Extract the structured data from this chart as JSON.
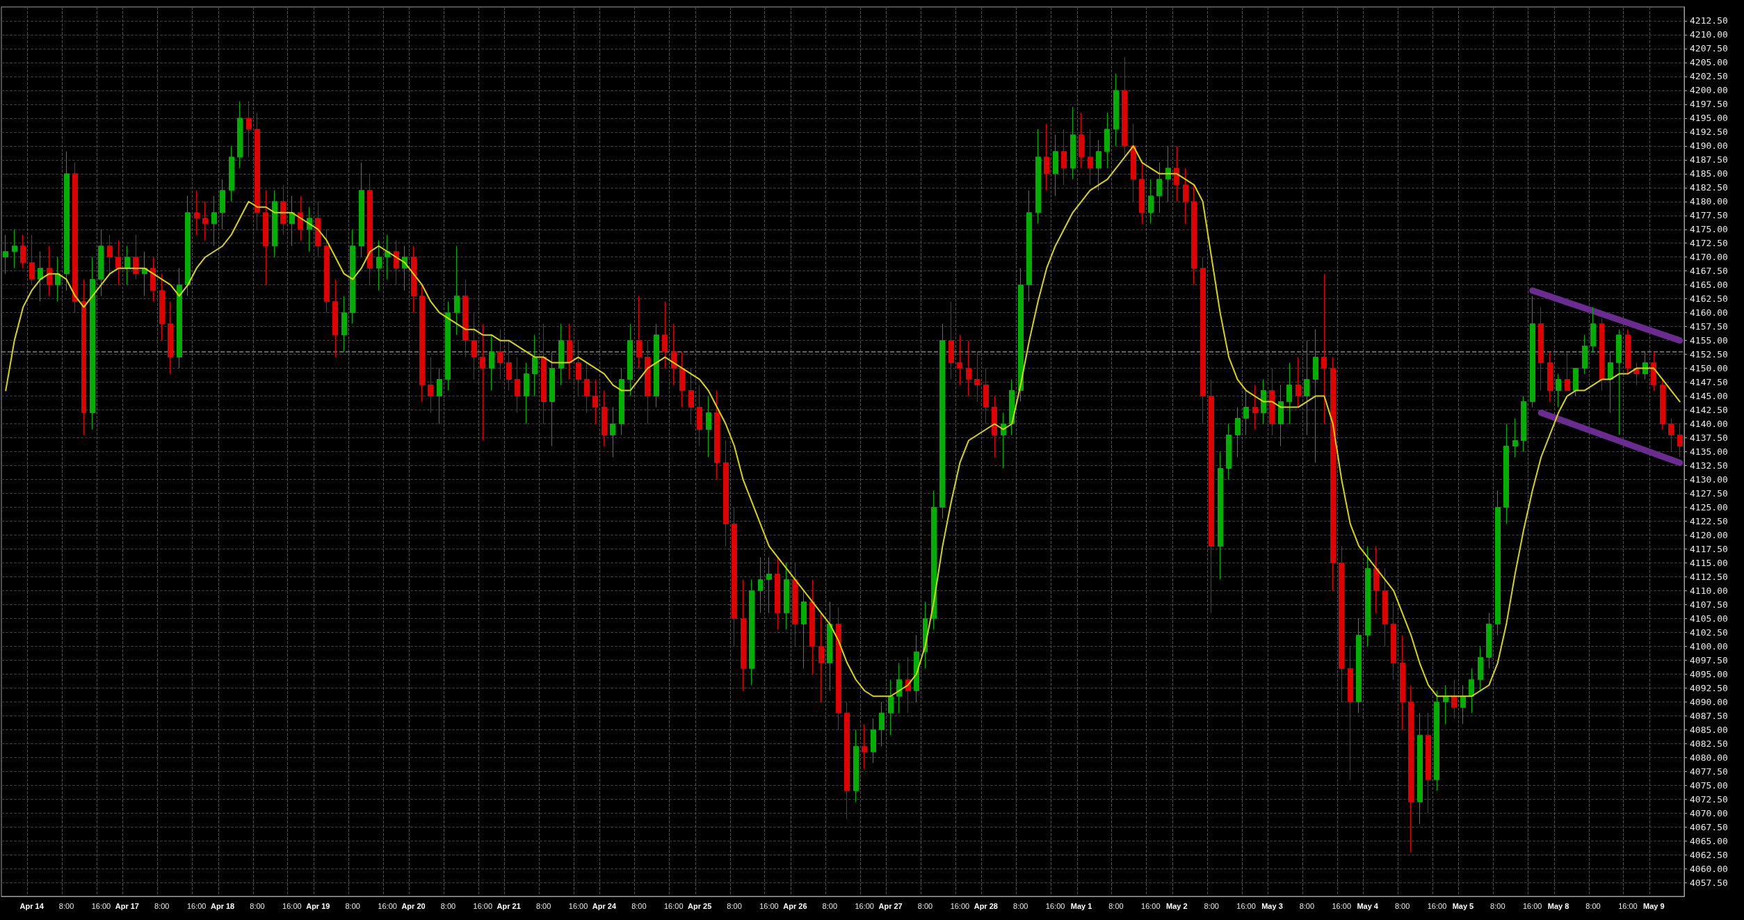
{
  "chart_data": {
    "type": "candlestick",
    "categories": [
      null,
      null,
      null,
      "Apr 14",
      null,
      null,
      null,
      "8:00",
      null,
      null,
      null,
      "16:00",
      null,
      null,
      "Apr 17",
      null,
      null,
      null,
      "8:00",
      null,
      null,
      null,
      "16:00",
      null,
      null,
      "Apr 18",
      null,
      null,
      null,
      "8:00",
      null,
      null,
      null,
      "16:00",
      null,
      null,
      "Apr 19",
      null,
      null,
      null,
      "8:00",
      null,
      null,
      null,
      "16:00",
      null,
      null,
      "Apr 20",
      null,
      null,
      null,
      "8:00",
      null,
      null,
      null,
      "16:00",
      null,
      null,
      "Apr 21",
      null,
      null,
      null,
      "8:00",
      null,
      null,
      null,
      "16:00",
      null,
      null,
      "Apr 24",
      null,
      null,
      null,
      "8:00",
      null,
      null,
      null,
      "16:00",
      null,
      null,
      "Apr 25",
      null,
      null,
      null,
      "8:00",
      null,
      null,
      null,
      "16:00",
      null,
      null,
      "Apr 26",
      null,
      null,
      null,
      "8:00",
      null,
      null,
      null,
      "16:00",
      null,
      null,
      "Apr 27",
      null,
      null,
      null,
      "8:00",
      null,
      null,
      null,
      "16:00",
      null,
      null,
      "Apr 28",
      null,
      null,
      null,
      "8:00",
      null,
      null,
      null,
      "16:00",
      null,
      null,
      "May 1",
      null,
      null,
      null,
      "8:00",
      null,
      null,
      null,
      "16:00",
      null,
      null,
      "May 2",
      null,
      null,
      null,
      "8:00",
      null,
      null,
      null,
      "16:00",
      null,
      null,
      "May 3",
      null,
      null,
      null,
      "8:00",
      null,
      null,
      null,
      "16:00",
      null,
      null,
      "May 4",
      null,
      null,
      null,
      "8:00",
      null,
      null,
      null,
      "16:00",
      null,
      null,
      "May 5",
      null,
      null,
      null,
      "8:00",
      null,
      null,
      null,
      "16:00",
      null,
      null,
      "May 8",
      null,
      null,
      null,
      "8:00",
      null,
      null,
      null,
      "16:00",
      null,
      null,
      "May 9",
      null,
      null,
      null
    ],
    "ohlc": [
      [
        4170,
        4174,
        4167,
        4171
      ],
      [
        4171,
        4175,
        4168,
        4172
      ],
      [
        4172,
        4174,
        4168,
        4169
      ],
      [
        4169,
        4174,
        4165,
        4166
      ],
      [
        4166,
        4171,
        4162,
        4168
      ],
      [
        4168,
        4172,
        4163,
        4165
      ],
      [
        4165,
        4170,
        4162,
        4167
      ],
      [
        4167,
        4189,
        4164,
        4185
      ],
      [
        4185,
        4187,
        4160,
        4162
      ],
      [
        4162,
        4166,
        4138,
        4142
      ],
      [
        4142,
        4170,
        4139,
        4166
      ],
      [
        4166,
        4175,
        4163,
        4172
      ],
      [
        4172,
        4174,
        4167,
        4170
      ],
      [
        4170,
        4173,
        4165,
        4168
      ],
      [
        4168,
        4172,
        4165,
        4170
      ],
      [
        4170,
        4174,
        4166,
        4167
      ],
      [
        4167,
        4171,
        4163,
        4168
      ],
      [
        4168,
        4170,
        4162,
        4164
      ],
      [
        4164,
        4167,
        4155,
        4158
      ],
      [
        4158,
        4162,
        4149,
        4152
      ],
      [
        4152,
        4168,
        4150,
        4165
      ],
      [
        4165,
        4181,
        4163,
        4178
      ],
      [
        4178,
        4182,
        4174,
        4177
      ],
      [
        4177,
        4180,
        4173,
        4176
      ],
      [
        4176,
        4181,
        4172,
        4178
      ],
      [
        4178,
        4184,
        4175,
        4182
      ],
      [
        4182,
        4190,
        4180,
        4188
      ],
      [
        4188,
        4198,
        4186,
        4195
      ],
      [
        4195,
        4198,
        4188,
        4193
      ],
      [
        4193,
        4196,
        4175,
        4178
      ],
      [
        4178,
        4182,
        4165,
        4172
      ],
      [
        4172,
        4182,
        4170,
        4180
      ],
      [
        4180,
        4183,
        4174,
        4176
      ],
      [
        4176,
        4181,
        4172,
        4178
      ],
      [
        4178,
        4181,
        4173,
        4175
      ],
      [
        4175,
        4179,
        4171,
        4177
      ],
      [
        4177,
        4180,
        4170,
        4172
      ],
      [
        4172,
        4175,
        4160,
        4162
      ],
      [
        4162,
        4166,
        4152,
        4156
      ],
      [
        4156,
        4163,
        4153,
        4160
      ],
      [
        4160,
        4175,
        4158,
        4172
      ],
      [
        4172,
        4187,
        4170,
        4182
      ],
      [
        4182,
        4185,
        4165,
        4168
      ],
      [
        4168,
        4173,
        4164,
        4170
      ],
      [
        4170,
        4174,
        4166,
        4171
      ],
      [
        4171,
        4173,
        4165,
        4168
      ],
      [
        4168,
        4172,
        4164,
        4170
      ],
      [
        4170,
        4172,
        4160,
        4163
      ],
      [
        4163,
        4165,
        4144,
        4147
      ],
      [
        4147,
        4152,
        4142,
        4145
      ],
      [
        4145,
        4150,
        4140,
        4148
      ],
      [
        4148,
        4162,
        4146,
        4160
      ],
      [
        4160,
        4172,
        4156,
        4163
      ],
      [
        4163,
        4166,
        4152,
        4155
      ],
      [
        4155,
        4160,
        4148,
        4152
      ],
      [
        4152,
        4158,
        4137,
        4150
      ],
      [
        4150,
        4156,
        4146,
        4153
      ],
      [
        4153,
        4157,
        4148,
        4151
      ],
      [
        4151,
        4155,
        4146,
        4148
      ],
      [
        4148,
        4152,
        4142,
        4145
      ],
      [
        4145,
        4151,
        4140,
        4149
      ],
      [
        4149,
        4156,
        4145,
        4152
      ],
      [
        4152,
        4158,
        4140,
        4144
      ],
      [
        4144,
        4153,
        4136,
        4150
      ],
      [
        4150,
        4158,
        4147,
        4155
      ],
      [
        4155,
        4158,
        4148,
        4151
      ],
      [
        4151,
        4155,
        4145,
        4148
      ],
      [
        4148,
        4151,
        4142,
        4145
      ],
      [
        4145,
        4148,
        4140,
        4143
      ],
      [
        4143,
        4146,
        4136,
        4138
      ],
      [
        4138,
        4143,
        4134,
        4140
      ],
      [
        4140,
        4150,
        4138,
        4148
      ],
      [
        4148,
        4158,
        4145,
        4155
      ],
      [
        4155,
        4163,
        4150,
        4152
      ],
      [
        4152,
        4155,
        4140,
        4145
      ],
      [
        4145,
        4158,
        4143,
        4156
      ],
      [
        4156,
        4162,
        4150,
        4153
      ],
      [
        4153,
        4158,
        4147,
        4150
      ],
      [
        4150,
        4153,
        4143,
        4146
      ],
      [
        4146,
        4150,
        4140,
        4143
      ],
      [
        4143,
        4147,
        4136,
        4139
      ],
      [
        4139,
        4145,
        4134,
        4142
      ],
      [
        4142,
        4146,
        4130,
        4133
      ],
      [
        4133,
        4137,
        4118,
        4122
      ],
      [
        4122,
        4125,
        4100,
        4105
      ],
      [
        4105,
        4112,
        4092,
        4096
      ],
      [
        4096,
        4112,
        4093,
        4110
      ],
      [
        4110,
        4116,
        4106,
        4112
      ],
      [
        4112,
        4116,
        4106,
        4113
      ],
      [
        4113,
        4116,
        4103,
        4106
      ],
      [
        4106,
        4115,
        4103,
        4112
      ],
      [
        4112,
        4115,
        4100,
        4104
      ],
      [
        4104,
        4110,
        4096,
        4108
      ],
      [
        4108,
        4112,
        4095,
        4100
      ],
      [
        4100,
        4106,
        4090,
        4097
      ],
      [
        4097,
        4108,
        4092,
        4104
      ],
      [
        4104,
        4107,
        4085,
        4088
      ],
      [
        4088,
        4090,
        4069,
        4074
      ],
      [
        4074,
        4085,
        4072,
        4082
      ],
      [
        4082,
        4086,
        4078,
        4081
      ],
      [
        4081,
        4087,
        4079,
        4085
      ],
      [
        4085,
        4090,
        4082,
        4088
      ],
      [
        4088,
        4094,
        4084,
        4091
      ],
      [
        4091,
        4097,
        4088,
        4094
      ],
      [
        4094,
        4098,
        4088,
        4092
      ],
      [
        4092,
        4102,
        4090,
        4099
      ],
      [
        4099,
        4108,
        4096,
        4105
      ],
      [
        4105,
        4128,
        4103,
        4125
      ],
      [
        4125,
        4158,
        4123,
        4155
      ],
      [
        4155,
        4162,
        4148,
        4151
      ],
      [
        4151,
        4156,
        4147,
        4150
      ],
      [
        4150,
        4155,
        4145,
        4148
      ],
      [
        4148,
        4153,
        4144,
        4147
      ],
      [
        4147,
        4150,
        4140,
        4143
      ],
      [
        4143,
        4145,
        4134,
        4138
      ],
      [
        4138,
        4142,
        4132,
        4140
      ],
      [
        4140,
        4148,
        4138,
        4146
      ],
      [
        4146,
        4168,
        4144,
        4165
      ],
      [
        4165,
        4182,
        4162,
        4178
      ],
      [
        4178,
        4193,
        4176,
        4188
      ],
      [
        4188,
        4194,
        4182,
        4185
      ],
      [
        4185,
        4192,
        4181,
        4189
      ],
      [
        4189,
        4193,
        4183,
        4186
      ],
      [
        4186,
        4197,
        4184,
        4192
      ],
      [
        4192,
        4196,
        4186,
        4188
      ],
      [
        4188,
        4193,
        4183,
        4186
      ],
      [
        4186,
        4191,
        4182,
        4189
      ],
      [
        4189,
        4196,
        4186,
        4193
      ],
      [
        4193,
        4203,
        4190,
        4200
      ],
      [
        4200,
        4206,
        4188,
        4190
      ],
      [
        4190,
        4194,
        4180,
        4184
      ],
      [
        4184,
        4187,
        4176,
        4178
      ],
      [
        4178,
        4184,
        4176,
        4181
      ],
      [
        4181,
        4187,
        4178,
        4184
      ],
      [
        4184,
        4190,
        4180,
        4186
      ],
      [
        4186,
        4190,
        4180,
        4183
      ],
      [
        4183,
        4186,
        4176,
        4180
      ],
      [
        4180,
        4183,
        4165,
        4168
      ],
      [
        4168,
        4170,
        4140,
        4145
      ],
      [
        4145,
        4148,
        4106,
        4118
      ],
      [
        4118,
        4135,
        4112,
        4132
      ],
      [
        4132,
        4140,
        4130,
        4138
      ],
      [
        4138,
        4143,
        4134,
        4141
      ],
      [
        4141,
        4146,
        4138,
        4143
      ],
      [
        4143,
        4147,
        4139,
        4142
      ],
      [
        4142,
        4148,
        4140,
        4146
      ],
      [
        4146,
        4150,
        4138,
        4140
      ],
      [
        4140,
        4147,
        4136,
        4144
      ],
      [
        4144,
        4151,
        4140,
        4147
      ],
      [
        4147,
        4152,
        4143,
        4145
      ],
      [
        4145,
        4155,
        4138,
        4148
      ],
      [
        4148,
        4157,
        4133,
        4152
      ],
      [
        4152,
        4167,
        4140,
        4150
      ],
      [
        4150,
        4152,
        4110,
        4115
      ],
      [
        4115,
        4118,
        4090,
        4096
      ],
      [
        4096,
        4100,
        4076,
        4090
      ],
      [
        4090,
        4105,
        4088,
        4102
      ],
      [
        4102,
        4118,
        4100,
        4114
      ],
      [
        4114,
        4118,
        4106,
        4110
      ],
      [
        4110,
        4114,
        4100,
        4104
      ],
      [
        4104,
        4108,
        4094,
        4097
      ],
      [
        4097,
        4102,
        4085,
        4090
      ],
      [
        4090,
        4093,
        4063,
        4072
      ],
      [
        4072,
        4088,
        4068,
        4084
      ],
      [
        4084,
        4088,
        4070,
        4076
      ],
      [
        4076,
        4092,
        4074,
        4090
      ],
      [
        4090,
        4093,
        4086,
        4091
      ],
      [
        4091,
        4094,
        4087,
        4089
      ],
      [
        4089,
        4093,
        4086,
        4091
      ],
      [
        4091,
        4096,
        4088,
        4094
      ],
      [
        4094,
        4100,
        4092,
        4098
      ],
      [
        4098,
        4106,
        4096,
        4104
      ],
      [
        4104,
        4128,
        4102,
        4125
      ],
      [
        4125,
        4140,
        4122,
        4136
      ],
      [
        4136,
        4141,
        4134,
        4137
      ],
      [
        4137,
        4145,
        4135,
        4144
      ],
      [
        4144,
        4163,
        4143,
        4158
      ],
      [
        4158,
        4161,
        4146,
        4151
      ],
      [
        4151,
        4153,
        4144,
        4146
      ],
      [
        4146,
        4149,
        4143,
        4148
      ],
      [
        4148,
        4153,
        4146,
        4146
      ],
      [
        4146,
        4150,
        4145,
        4150
      ],
      [
        4150,
        4156,
        4149,
        4154
      ],
      [
        4154,
        4161,
        4153,
        4158
      ],
      [
        4158,
        4159,
        4146,
        4148
      ],
      [
        4148,
        4153,
        4142,
        4151
      ],
      [
        4151,
        4157,
        4138,
        4156
      ],
      [
        4156,
        4157,
        4149,
        4150
      ],
      [
        4150,
        4151,
        4147,
        4149
      ],
      [
        4149,
        4153,
        4148,
        4151
      ],
      [
        4151,
        4153,
        4146,
        4147
      ],
      [
        4147,
        4148,
        4139,
        4140
      ],
      [
        4140,
        4141,
        4135,
        4138
      ],
      [
        4138,
        4140,
        4134,
        4136
      ]
    ],
    "series": [
      {
        "type": "line",
        "color": "#d8d800",
        "values": [
          4146,
          4155,
          4161,
          4164,
          4166,
          4167,
          4167,
          4166,
          4163,
          4161,
          4163,
          4165,
          4167,
          4168,
          4168,
          4168,
          4168,
          4167,
          4166,
          4165,
          4163,
          4165,
          4168,
          4170,
          4171,
          4172,
          4174,
          4177,
          4180,
          4179,
          4179,
          4178,
          4178,
          4178,
          4177,
          4176,
          4175,
          4173,
          4170,
          4167,
          4166,
          4168,
          4171,
          4172,
          4171,
          4170,
          4169,
          4167,
          4165,
          4162,
          4160,
          4159,
          4158,
          4157,
          4157,
          4156,
          4156,
          4155,
          4155,
          4154,
          4153,
          4152,
          4152,
          4151,
          4151,
          4151,
          4152,
          4151,
          4150,
          4149,
          4147,
          4146,
          4146,
          4148,
          4150,
          4151,
          4152,
          4151,
          4150,
          4149,
          4148,
          4146,
          4143,
          4140,
          4136,
          4130,
          4126,
          4122,
          4118,
          4116,
          4114,
          4112,
          4110,
          4108,
          4106,
          4104,
          4101,
          4097,
          4094,
          4092,
          4091,
          4091,
          4091,
          4092,
          4093,
          4095,
          4100,
          4108,
          4118,
          4126,
          4133,
          4137,
          4138,
          4139,
          4140,
          4139,
          4140,
          4147,
          4155,
          4162,
          4168,
          4172,
          4175,
          4178,
          4180,
          4182,
          4183,
          4184,
          4186,
          4188,
          4190,
          4187,
          4186,
          4185,
          4185,
          4185,
          4184,
          4183,
          4180,
          4170,
          4160,
          4152,
          4148,
          4146,
          4145,
          4144,
          4144,
          4143,
          4143,
          4143,
          4144,
          4145,
          4145,
          4140,
          4130,
          4122,
          4118,
          4116,
          4114,
          4112,
          4110,
          4106,
          4102,
          4097,
          4093,
          4091,
          4091,
          4091,
          4091,
          4091,
          4092,
          4093,
          4097,
          4104,
          4113,
          4121,
          4128,
          4134,
          4138,
          4142,
          4145,
          4146,
          4146,
          4147,
          4148,
          4148,
          4149,
          4149,
          4150,
          4150,
          4150,
          4148,
          4146,
          4144
        ]
      },
      {
        "type": "line",
        "color": "#6b2c91",
        "values": [
          null,
          null,
          null,
          null,
          null,
          null,
          null,
          null,
          null,
          null,
          null,
          null,
          null,
          null,
          null,
          null,
          null,
          null,
          null,
          null,
          null,
          null,
          null,
          null,
          null,
          null,
          null,
          null,
          null,
          null,
          null,
          null,
          null,
          null,
          null,
          null,
          null,
          null,
          null,
          null,
          null,
          null,
          null,
          null,
          null,
          null,
          null,
          null,
          null,
          null,
          null,
          null,
          null,
          null,
          null,
          null,
          null,
          null,
          null,
          null,
          null,
          null,
          null,
          null,
          null,
          null,
          null,
          null,
          null,
          null,
          null,
          null,
          null,
          null,
          null,
          null,
          null,
          null,
          null,
          null,
          null,
          null,
          null,
          null,
          null,
          null,
          null,
          null,
          null,
          null,
          null,
          null,
          null,
          null,
          null,
          null,
          null,
          null,
          null,
          null,
          null,
          null,
          null,
          null,
          null,
          null,
          null,
          null,
          null,
          null,
          null,
          null,
          null,
          null,
          null,
          null,
          null,
          null,
          null,
          null,
          null,
          null,
          null,
          null,
          null,
          null,
          null,
          null,
          null,
          null,
          null,
          null,
          null,
          null,
          null,
          null,
          null,
          null,
          null,
          null,
          null,
          null,
          null,
          null,
          null,
          null,
          null,
          null,
          null,
          null,
          null,
          null,
          null,
          null,
          null,
          null,
          null,
          null,
          null,
          null,
          null,
          null,
          null,
          null,
          null,
          null,
          null,
          null,
          null,
          null,
          null,
          null,
          null,
          null,
          null,
          null,
          4164,
          null,
          null,
          null,
          null,
          null,
          null,
          null,
          null,
          null,
          null,
          null,
          null,
          null,
          null,
          null,
          null,
          4155
        ]
      },
      {
        "type": "line",
        "color": "#6b2c91",
        "values": [
          null,
          null,
          null,
          null,
          null,
          null,
          null,
          null,
          null,
          null,
          null,
          null,
          null,
          null,
          null,
          null,
          null,
          null,
          null,
          null,
          null,
          null,
          null,
          null,
          null,
          null,
          null,
          null,
          null,
          null,
          null,
          null,
          null,
          null,
          null,
          null,
          null,
          null,
          null,
          null,
          null,
          null,
          null,
          null,
          null,
          null,
          null,
          null,
          null,
          null,
          null,
          null,
          null,
          null,
          null,
          null,
          null,
          null,
          null,
          null,
          null,
          null,
          null,
          null,
          null,
          null,
          null,
          null,
          null,
          null,
          null,
          null,
          null,
          null,
          null,
          null,
          null,
          null,
          null,
          null,
          null,
          null,
          null,
          null,
          null,
          null,
          null,
          null,
          null,
          null,
          null,
          null,
          null,
          null,
          null,
          null,
          null,
          null,
          null,
          null,
          null,
          null,
          null,
          null,
          null,
          null,
          null,
          null,
          null,
          null,
          null,
          null,
          null,
          null,
          null,
          null,
          null,
          null,
          null,
          null,
          null,
          null,
          null,
          null,
          null,
          null,
          null,
          null,
          null,
          null,
          null,
          null,
          null,
          null,
          null,
          null,
          null,
          null,
          null,
          null,
          null,
          null,
          null,
          null,
          null,
          null,
          null,
          null,
          null,
          null,
          null,
          null,
          null,
          null,
          null,
          null,
          null,
          null,
          null,
          null,
          null,
          null,
          null,
          null,
          null,
          null,
          null,
          null,
          null,
          null,
          null,
          null,
          null,
          null,
          null,
          null,
          null,
          4142,
          null,
          null,
          null,
          null,
          null,
          null,
          null,
          null,
          null,
          null,
          null,
          null,
          null,
          null,
          null,
          4133
        ]
      }
    ],
    "ref_lines": [
      {
        "axis": "y",
        "value": 4153,
        "color": "#808080",
        "line_style": "dashed"
      }
    ],
    "ylim": [
      4055,
      4215
    ],
    "yticks": [
      {
        "value": 4057.5,
        "label": "4057.50"
      },
      {
        "value": 4060,
        "label": "4060.00"
      },
      {
        "value": 4062.5,
        "label": "4062.50"
      },
      {
        "value": 4065,
        "label": "4065.00"
      },
      {
        "value": 4067.5,
        "label": "4067.50"
      },
      {
        "value": 4070,
        "label": "4070.00"
      },
      {
        "value": 4072.5,
        "label": "4072.50"
      },
      {
        "value": 4075,
        "label": "4075.00"
      },
      {
        "value": 4077.5,
        "label": "4077.50"
      },
      {
        "value": 4080,
        "label": "4080.00"
      },
      {
        "value": 4082.5,
        "label": "4082.50"
      },
      {
        "value": 4085,
        "label": "4085.00"
      },
      {
        "value": 4087.5,
        "label": "4087.50"
      },
      {
        "value": 4090,
        "label": "4090.00"
      },
      {
        "value": 4092.5,
        "label": "4092.50"
      },
      {
        "value": 4095,
        "label": "4095.00"
      },
      {
        "value": 4097.5,
        "label": "4097.50"
      },
      {
        "value": 4100,
        "label": "4100.00"
      },
      {
        "value": 4102.5,
        "label": "4102.50"
      },
      {
        "value": 4105,
        "label": "4105.00"
      },
      {
        "value": 4107.5,
        "label": "4107.50"
      },
      {
        "value": 4110,
        "label": "4110.00"
      },
      {
        "value": 4112.5,
        "label": "4112.50"
      },
      {
        "value": 4115,
        "label": "4115.00"
      },
      {
        "value": 4117.5,
        "label": "4117.50"
      },
      {
        "value": 4120,
        "label": "4120.00"
      },
      {
        "value": 4122.5,
        "label": "4122.50"
      },
      {
        "value": 4125,
        "label": "4125.00"
      },
      {
        "value": 4127.5,
        "label": "4127.50"
      },
      {
        "value": 4130,
        "label": "4130.00"
      },
      {
        "value": 4132.5,
        "label": "4132.50"
      },
      {
        "value": 4135,
        "label": "4135.00"
      },
      {
        "value": 4137.5,
        "label": "4137.50"
      },
      {
        "value": 4140,
        "label": "4140.00"
      },
      {
        "value": 4142.5,
        "label": "4142.50"
      },
      {
        "value": 4145,
        "label": "4145.00"
      },
      {
        "value": 4147.5,
        "label": "4147.50"
      },
      {
        "value": 4150,
        "label": "4150.00"
      },
      {
        "value": 4152.5,
        "label": "4152.50"
      },
      {
        "value": 4155,
        "label": "4155.00"
      },
      {
        "value": 4157.5,
        "label": "4157.50"
      },
      {
        "value": 4160,
        "label": "4160.00"
      },
      {
        "value": 4162.5,
        "label": "4162.50"
      },
      {
        "value": 4165,
        "label": "4165.00"
      },
      {
        "value": 4167.5,
        "label": "4167.50"
      },
      {
        "value": 4170,
        "label": "4170.00"
      },
      {
        "value": 4172.5,
        "label": "4172.50"
      },
      {
        "value": 4175,
        "label": "4175.00"
      },
      {
        "value": 4177.5,
        "label": "4177.50"
      },
      {
        "value": 4180,
        "label": "4180.00"
      },
      {
        "value": 4182.5,
        "label": "4182.50"
      },
      {
        "value": 4185,
        "label": "4185.00"
      },
      {
        "value": 4187.5,
        "label": "4187.50"
      },
      {
        "value": 4190,
        "label": "4190.00"
      },
      {
        "value": 4192.5,
        "label": "4192.50"
      },
      {
        "value": 4195,
        "label": "4195.00"
      },
      {
        "value": 4197.5,
        "label": "4197.50"
      },
      {
        "value": 4200,
        "label": "4200.00"
      },
      {
        "value": 4202.5,
        "label": "4202.50"
      },
      {
        "value": 4205,
        "label": "4205.00"
      },
      {
        "value": 4207.5,
        "label": "4207.50"
      },
      {
        "value": 4210,
        "label": "4210.00"
      },
      {
        "value": 4212.5,
        "label": "4212.50"
      }
    ],
    "grid": true,
    "marker": "none"
  }
}
